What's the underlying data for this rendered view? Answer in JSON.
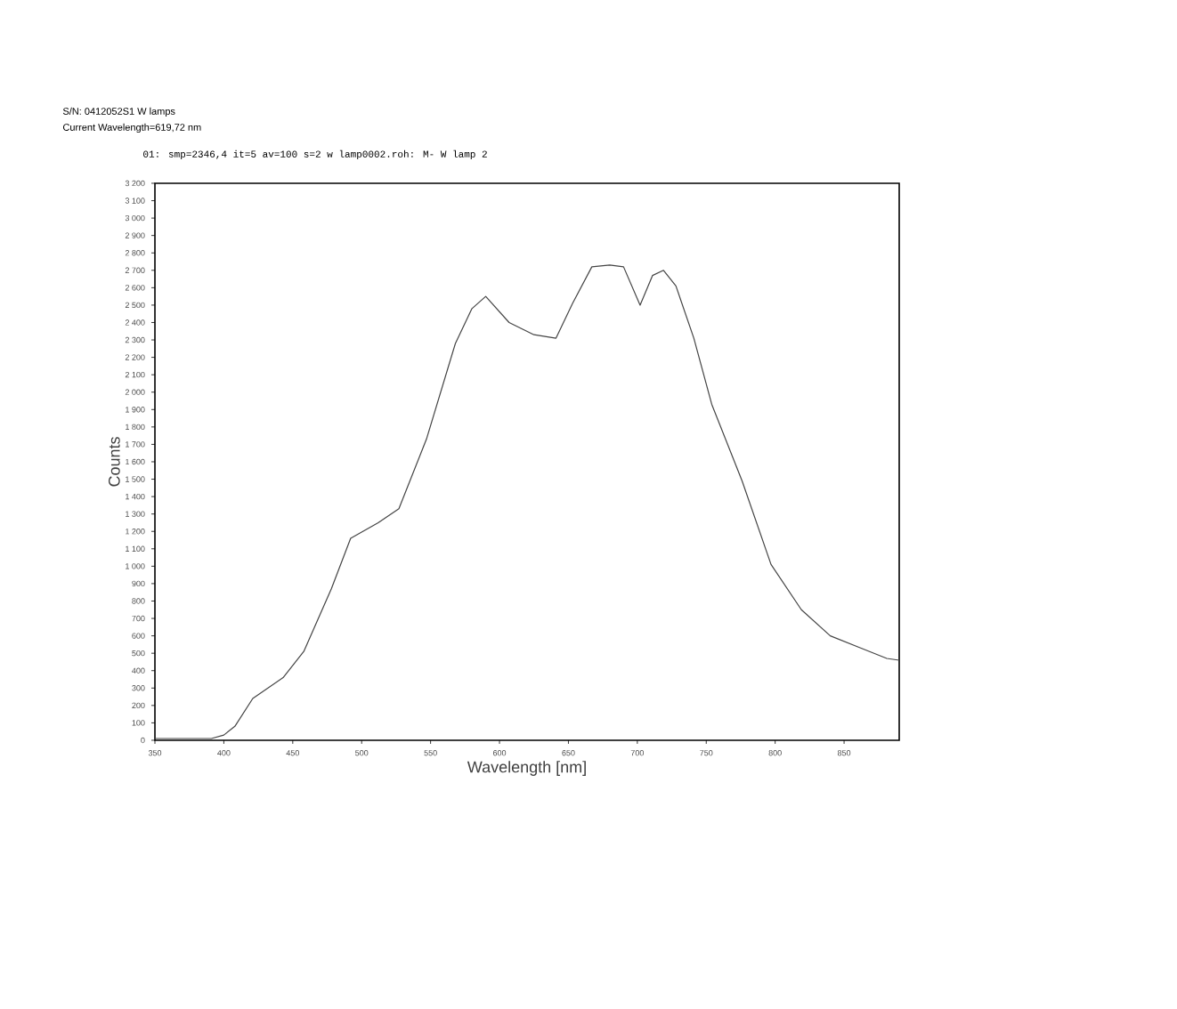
{
  "chart_data": {
    "type": "line",
    "xlabel": "Wavelength [nm]",
    "ylabel": "Counts",
    "annotations": [
      "S/N: 0412052S1  W lamps",
      "Current Wavelength=619,72 nm",
      "01: smp=2346,4    it=5 av=100 s=2 w lamp0002.roh: M- W lamp 2"
    ],
    "xlim": [
      350,
      890
    ],
    "ylim": [
      0,
      3200
    ],
    "xticks": [
      350,
      400,
      450,
      500,
      550,
      600,
      650,
      700,
      750,
      800,
      850
    ],
    "yticks": [
      0,
      100,
      200,
      300,
      400,
      500,
      600,
      700,
      800,
      900,
      {
        "value": 1000,
        "label": "1 000"
      },
      {
        "value": 1100,
        "label": "1 100"
      },
      {
        "value": 1200,
        "label": "1 200"
      },
      {
        "value": 1300,
        "label": "1 300"
      },
      {
        "value": 1400,
        "label": "1 400"
      },
      {
        "value": 1500,
        "label": "1 500"
      },
      {
        "value": 1600,
        "label": "1 600"
      },
      {
        "value": 1700,
        "label": "1 700"
      },
      {
        "value": 1800,
        "label": "1 800"
      },
      {
        "value": 1900,
        "label": "1 900"
      },
      {
        "value": 2000,
        "label": "2 000"
      },
      {
        "value": 2100,
        "label": "2 100"
      },
      {
        "value": 2200,
        "label": "2 200"
      },
      {
        "value": 2300,
        "label": "2 300"
      },
      {
        "value": 2400,
        "label": "2 400"
      },
      {
        "value": 2500,
        "label": "2 500"
      },
      {
        "value": 2600,
        "label": "2 600"
      },
      {
        "value": 2700,
        "label": "2 700"
      },
      {
        "value": 2800,
        "label": "2 800"
      },
      {
        "value": 2900,
        "label": "2 900"
      },
      {
        "value": 3000,
        "label": "3 000"
      },
      {
        "value": 3100,
        "label": "3 100"
      },
      {
        "value": 3200,
        "label": "3 200"
      }
    ],
    "marker": "none",
    "line_style": "solid",
    "series": [
      {
        "color": "#444444",
        "x": [
          350,
          365,
          391,
          400,
          408,
          421,
          443,
          458,
          478,
          492,
          512,
          527,
          547,
          568,
          580,
          590,
          607,
          625,
          641,
          653,
          667,
          680,
          690,
          702,
          711,
          719,
          728,
          741,
          754,
          776,
          797,
          819,
          840,
          862,
          881,
          890
        ],
        "values": [
          10,
          10,
          10,
          30,
          80,
          240,
          360,
          510,
          870,
          1160,
          1250,
          1330,
          1730,
          2280,
          2480,
          2550,
          2400,
          2330,
          2310,
          2510,
          2720,
          2730,
          2720,
          2500,
          2670,
          2700,
          2610,
          2310,
          1930,
          1490,
          1010,
          750,
          600,
          530,
          470,
          460
        ]
      }
    ]
  }
}
